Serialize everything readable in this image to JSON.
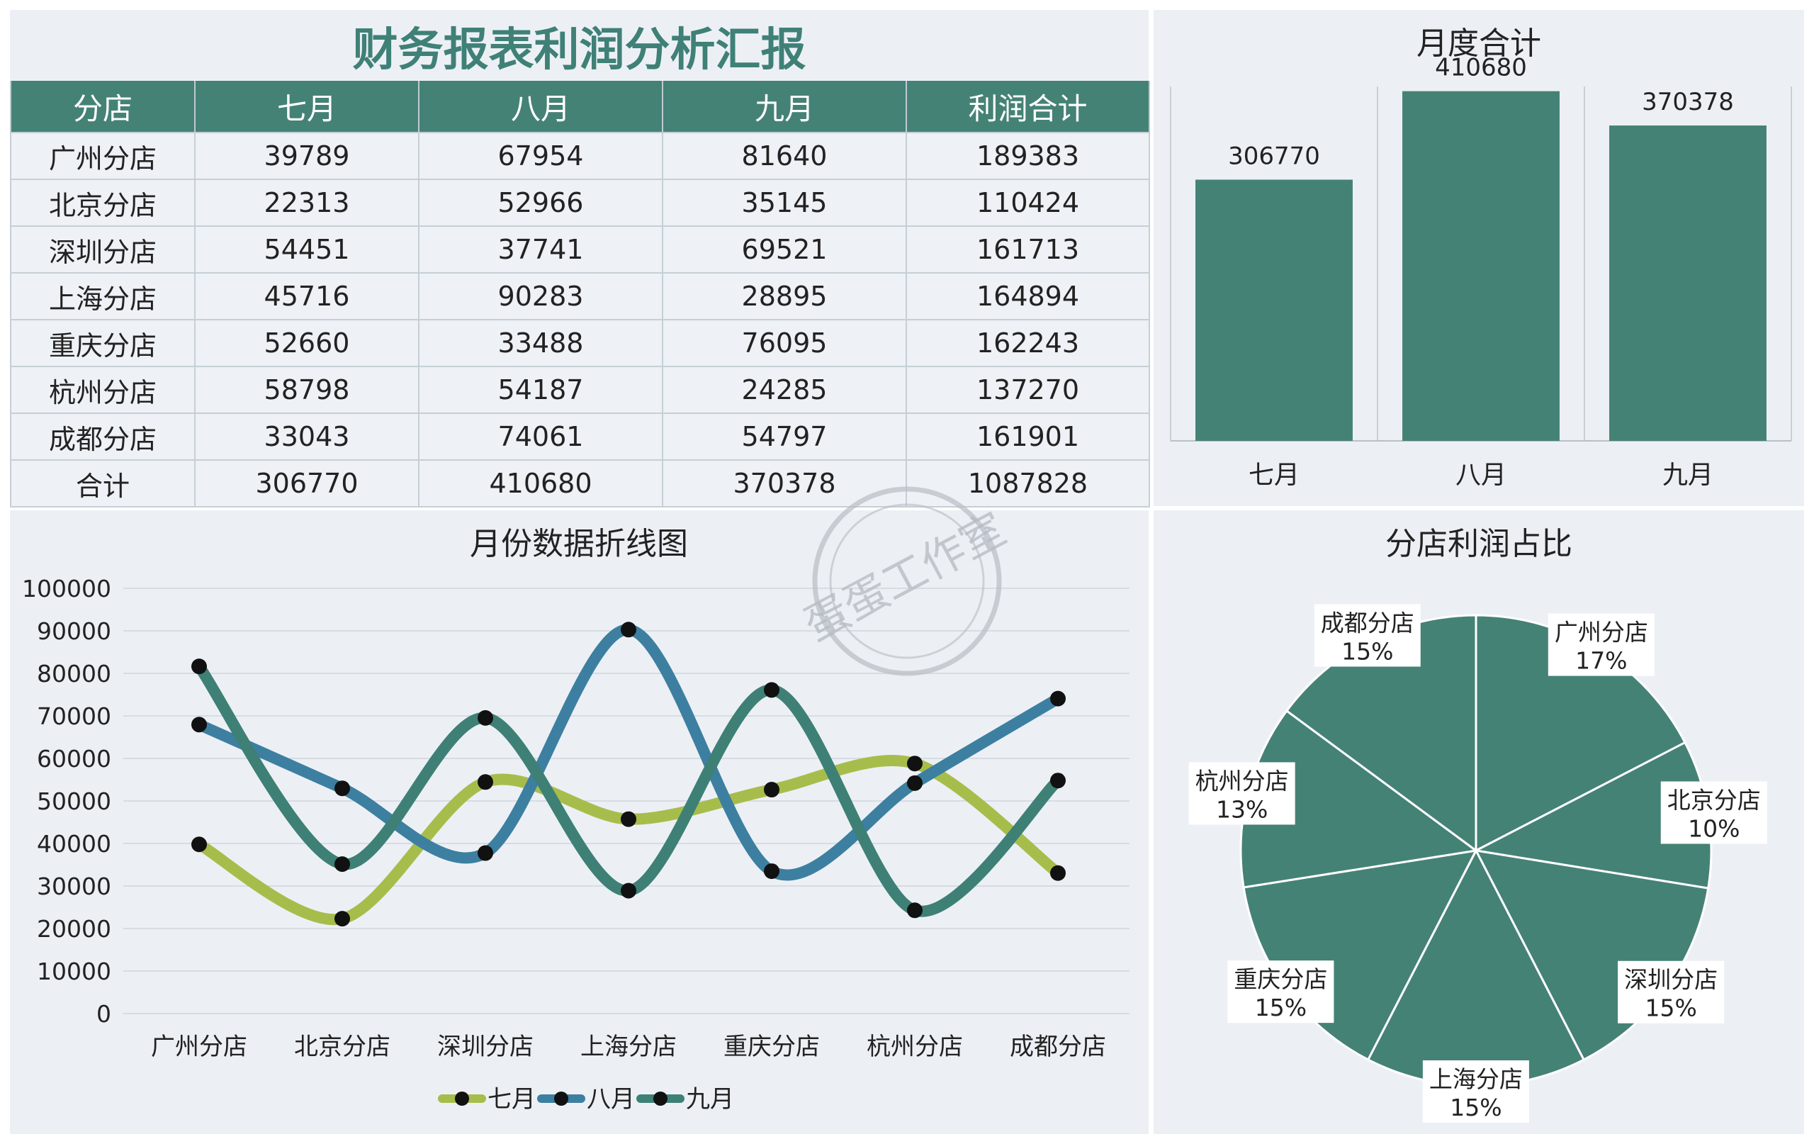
{
  "report": {
    "title": "财务报表利润分析汇报",
    "headers": [
      "分店",
      "七月",
      "八月",
      "九月",
      "利润合计"
    ],
    "rows": [
      [
        "广州分店",
        "39789",
        "67954",
        "81640",
        "189383"
      ],
      [
        "北京分店",
        "22313",
        "52966",
        "35145",
        "110424"
      ],
      [
        "深圳分店",
        "54451",
        "37741",
        "69521",
        "161713"
      ],
      [
        "上海分店",
        "45716",
        "90283",
        "28895",
        "164894"
      ],
      [
        "重庆分店",
        "52660",
        "33488",
        "76095",
        "162243"
      ],
      [
        "杭州分店",
        "58798",
        "54187",
        "24285",
        "137270"
      ],
      [
        "成都分店",
        "33043",
        "74061",
        "54797",
        "161901"
      ],
      [
        "合计",
        "306770",
        "410680",
        "370378",
        "1087828"
      ]
    ]
  },
  "watermark": {
    "text": "蛋蛋工作室"
  },
  "chart_data": [
    {
      "type": "bar",
      "title": "月度合计",
      "categories": [
        "七月",
        "八月",
        "九月"
      ],
      "values": [
        306770,
        410680,
        370378
      ],
      "data_labels": [
        "306770",
        "410680",
        "370378"
      ],
      "color": "#458276",
      "grid": false
    },
    {
      "type": "line",
      "title": "月份数据折线图",
      "categories": [
        "广州分店",
        "北京分店",
        "深圳分店",
        "上海分店",
        "重庆分店",
        "杭州分店",
        "成都分店"
      ],
      "yticks": [
        "0",
        "10000",
        "20000",
        "30000",
        "40000",
        "50000",
        "60000",
        "70000",
        "80000",
        "90000",
        "100000"
      ],
      "ylim": [
        0,
        100000
      ],
      "grid": true,
      "legend_position": "bottom",
      "series": [
        {
          "name": "七月",
          "color": "#a7bd4b",
          "values": [
            39789,
            22313,
            54451,
            45716,
            52660,
            58798,
            33043
          ]
        },
        {
          "name": "八月",
          "color": "#3d7fa0",
          "values": [
            67954,
            52966,
            37741,
            90283,
            33488,
            54187,
            74061
          ]
        },
        {
          "name": "九月",
          "color": "#3e8075",
          "values": [
            81640,
            35145,
            69521,
            28895,
            76095,
            24285,
            54797
          ]
        }
      ]
    },
    {
      "type": "pie",
      "title": "分店利润占比",
      "color": "#458276",
      "slices": [
        {
          "label": "广州分店",
          "value": 189383,
          "pct": "17%"
        },
        {
          "label": "北京分店",
          "value": 110424,
          "pct": "10%"
        },
        {
          "label": "深圳分店",
          "value": 161713,
          "pct": "15%"
        },
        {
          "label": "上海分店",
          "value": 164894,
          "pct": "15%"
        },
        {
          "label": "重庆分店",
          "value": 162243,
          "pct": "15%"
        },
        {
          "label": "杭州分店",
          "value": 137270,
          "pct": "13%"
        },
        {
          "label": "成都分店",
          "value": 161901,
          "pct": "15%"
        }
      ]
    }
  ]
}
